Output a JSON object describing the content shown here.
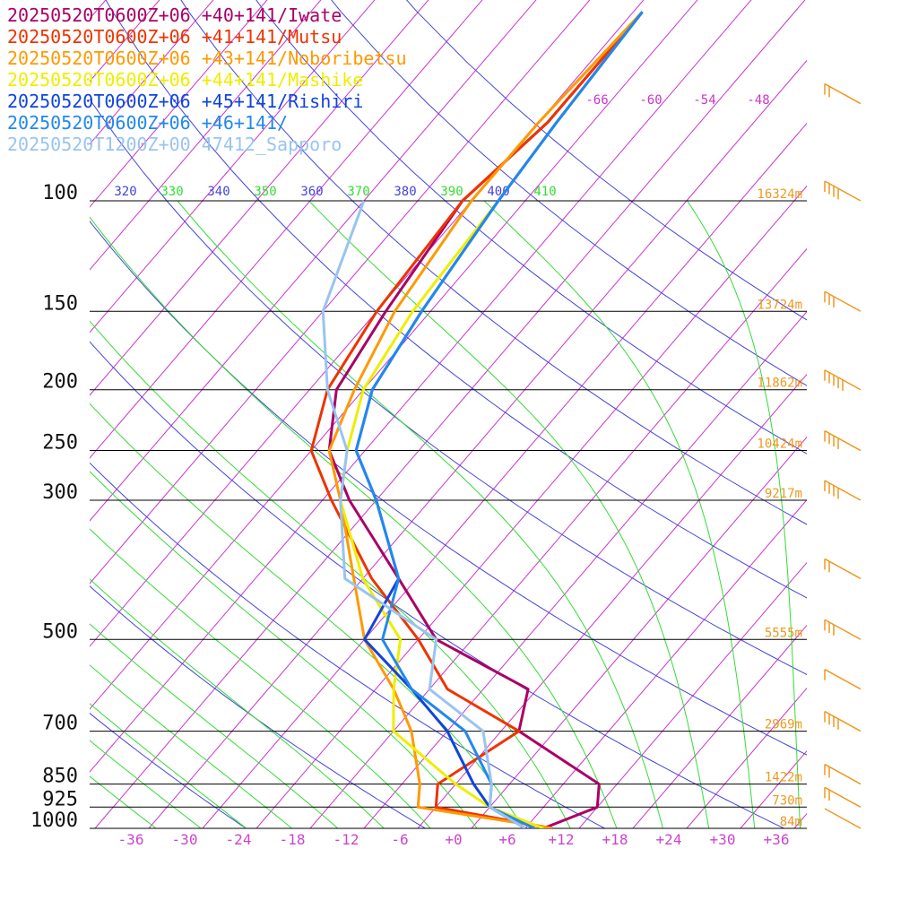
{
  "chart_data": {
    "type": "line",
    "title": "",
    "xlabel": "",
    "ylabel": "",
    "legend": [
      {
        "label": "20250520T0600Z+06 +40+141/Iwate",
        "color": "#aa0066"
      },
      {
        "label": "20250520T0600Z+06 +41+141/Mutsu",
        "color": "#ee3300"
      },
      {
        "label": "20250520T0600Z+06 +43+141/Noboribetsu",
        "color": "#ff9900"
      },
      {
        "label": "20250520T0600Z+06 +44+141/Mashike",
        "color": "#eeee00"
      },
      {
        "label": "20250520T0600Z+06 +45+141/Rishiri",
        "color": "#1144dd"
      },
      {
        "label": "20250520T0600Z+06 +46+141/",
        "color": "#2288ee"
      },
      {
        "label": "20250520T1200Z+00 47412_Sapporo",
        "color": "#99c4f0"
      }
    ],
    "pressure_levels": [
      {
        "label": "100",
        "p": 100,
        "height": "16324m"
      },
      {
        "label": "150",
        "p": 150,
        "height": "13724m"
      },
      {
        "label": "200",
        "p": 200,
        "height": "11862m"
      },
      {
        "label": "250",
        "p": 250,
        "height": "10424m"
      },
      {
        "label": "300",
        "p": 300,
        "height": "9217m"
      },
      {
        "label": "500",
        "p": 500,
        "height": "5555m"
      },
      {
        "label": "700",
        "p": 700,
        "height": "2969m"
      },
      {
        "label": "850",
        "p": 850,
        "height": "1422m"
      },
      {
        "label": "925",
        "p": 925,
        "height": "730m"
      },
      {
        "label": "1000",
        "p": 1000,
        "height": "84m"
      }
    ],
    "x_ticks": [
      "-36",
      "-30",
      "-24",
      "-18",
      "-12",
      "-6",
      "+0",
      "+6",
      "+12",
      "+18",
      "+24",
      "+30",
      "+36"
    ],
    "theta_labels": [
      "320",
      "330",
      "340",
      "350",
      "360",
      "370",
      "380",
      "390",
      "400",
      "410"
    ],
    "upper_temp_labels": [
      "-66",
      "-60",
      "-54",
      "-48"
    ],
    "temp_range": [
      -40,
      40
    ],
    "pressure_range": [
      1000,
      100
    ],
    "series": [
      {
        "name": "20250520T0600Z+06 +40+141/Iwate",
        "color": "#aa0066",
        "points": [
          [
            1000,
            10
          ],
          [
            925,
            14
          ],
          [
            850,
            12
          ],
          [
            700,
            -2
          ],
          [
            600,
            -5
          ],
          [
            500,
            -20
          ],
          [
            400,
            -30
          ],
          [
            300,
            -43
          ],
          [
            250,
            -50
          ],
          [
            200,
            -55
          ],
          [
            150,
            -57
          ],
          [
            100,
            -59
          ],
          [
            75,
            -57
          ],
          [
            50,
            -57
          ]
        ]
      },
      {
        "name": "20250520T0600Z+06 +41+141/Mutsu",
        "color": "#ee3300",
        "points": [
          [
            1000,
            11
          ],
          [
            925,
            -4
          ],
          [
            850,
            -6
          ],
          [
            700,
            -2
          ],
          [
            600,
            -14
          ],
          [
            500,
            -22
          ],
          [
            400,
            -33
          ],
          [
            300,
            -45
          ],
          [
            250,
            -52
          ],
          [
            200,
            -56
          ],
          [
            150,
            -58
          ],
          [
            100,
            -59
          ],
          [
            75,
            -57
          ],
          [
            50,
            -57
          ]
        ]
      },
      {
        "name": "20250520T0600Z+06 +43+141/Noboribetsu",
        "color": "#ff9900",
        "points": [
          [
            1000,
            11
          ],
          [
            925,
            -6
          ],
          [
            850,
            -8
          ],
          [
            700,
            -14
          ],
          [
            600,
            -20
          ],
          [
            500,
            -28
          ],
          [
            400,
            -35
          ],
          [
            300,
            -44
          ],
          [
            250,
            -50
          ],
          [
            200,
            -53
          ],
          [
            150,
            -56
          ],
          [
            100,
            -58
          ],
          [
            75,
            -58
          ],
          [
            50,
            -57
          ]
        ]
      },
      {
        "name": "20250520T0600Z+06 +44+141/Mashike",
        "color": "#eeee00",
        "points": [
          [
            1000,
            10
          ],
          [
            925,
            2
          ],
          [
            850,
            -4
          ],
          [
            700,
            -16
          ],
          [
            600,
            -20
          ],
          [
            500,
            -24
          ],
          [
            400,
            -34
          ],
          [
            300,
            -44
          ],
          [
            250,
            -48
          ],
          [
            200,
            -52
          ],
          [
            150,
            -54
          ],
          [
            100,
            -55
          ],
          [
            75,
            -56
          ],
          [
            50,
            -57
          ]
        ]
      },
      {
        "name": "20250520T0600Z+06 +45+141/Rishiri",
        "color": "#1144dd",
        "points": [
          [
            1000,
            8
          ],
          [
            925,
            2
          ],
          [
            850,
            -2
          ],
          [
            700,
            -10
          ],
          [
            600,
            -18
          ],
          [
            500,
            -28
          ],
          [
            400,
            -30
          ],
          [
            300,
            -40
          ],
          [
            250,
            -47
          ],
          [
            200,
            -51
          ],
          [
            150,
            -53
          ],
          [
            100,
            -55
          ],
          [
            75,
            -56
          ],
          [
            50,
            -57
          ]
        ]
      },
      {
        "name": "20250520T0600Z+06 +46+141/",
        "color": "#2288ee",
        "points": [
          [
            1000,
            9
          ],
          [
            925,
            2
          ],
          [
            850,
            0
          ],
          [
            700,
            -8
          ],
          [
            600,
            -18
          ],
          [
            500,
            -26
          ],
          [
            400,
            -30
          ],
          [
            300,
            -40
          ],
          [
            250,
            -47
          ],
          [
            200,
            -51
          ],
          [
            150,
            -53
          ],
          [
            100,
            -55
          ],
          [
            75,
            -56
          ],
          [
            50,
            -57
          ]
        ]
      },
      {
        "name": "20250520T1200Z+00 47412_Sapporo",
        "color": "#99c4f0",
        "points": [
          [
            1000,
            8
          ],
          [
            925,
            2
          ],
          [
            850,
            0
          ],
          [
            700,
            -6
          ],
          [
            600,
            -16
          ],
          [
            500,
            -20
          ],
          [
            400,
            -36
          ],
          [
            300,
            -44
          ],
          [
            250,
            -48
          ],
          [
            200,
            -56
          ],
          [
            150,
            -64
          ],
          [
            100,
            -70
          ]
        ]
      }
    ],
    "wind_barbs": [
      {
        "p": 1000,
        "barbs": 0
      },
      {
        "p": 925,
        "barbs": 2
      },
      {
        "p": 850,
        "barbs": 2
      },
      {
        "p": 700,
        "barbs": 4
      },
      {
        "p": 600,
        "barbs": 1
      },
      {
        "p": 500,
        "barbs": 3
      },
      {
        "p": 400,
        "barbs": 2
      },
      {
        "p": 300,
        "barbs": 4
      },
      {
        "p": 250,
        "barbs": 4
      },
      {
        "p": 200,
        "barbs": 5
      },
      {
        "p": 150,
        "barbs": 3
      },
      {
        "p": 100,
        "barbs": 4
      },
      {
        "p": 70,
        "barbs": 2
      }
    ],
    "colors": {
      "isotherm": "#cc33cc",
      "dry_adiabat": "#4444dd",
      "moist_adiabat": "#33dd33",
      "isobar": "#000000",
      "height_label": "#ee9922",
      "barb": "#ee9922"
    }
  }
}
